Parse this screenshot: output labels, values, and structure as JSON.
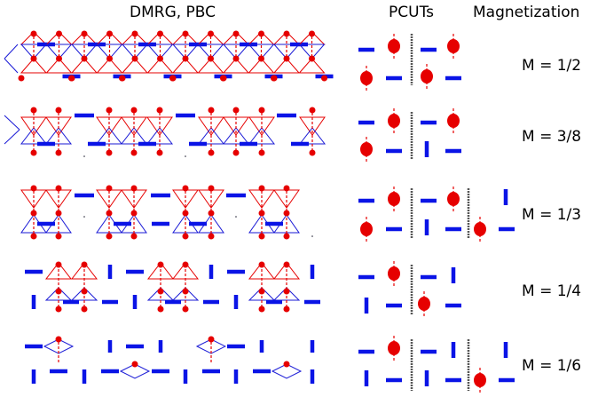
{
  "headers": {
    "dmrg": "DMRG, PBC",
    "pcuts": "PCUTs",
    "magnetization": "Magnetization"
  },
  "rows": [
    {
      "label": "M = 1/2"
    },
    {
      "label": "M = 3/8"
    },
    {
      "label": "M = 1/3"
    },
    {
      "label": "M = 1/4"
    },
    {
      "label": "M = 1/6"
    }
  ],
  "colors": {
    "dimer": "#0a14e6",
    "spin": "#e60000",
    "triangle": "#e60000",
    "bond": "#1a1ad6",
    "separator": "#555555"
  }
}
